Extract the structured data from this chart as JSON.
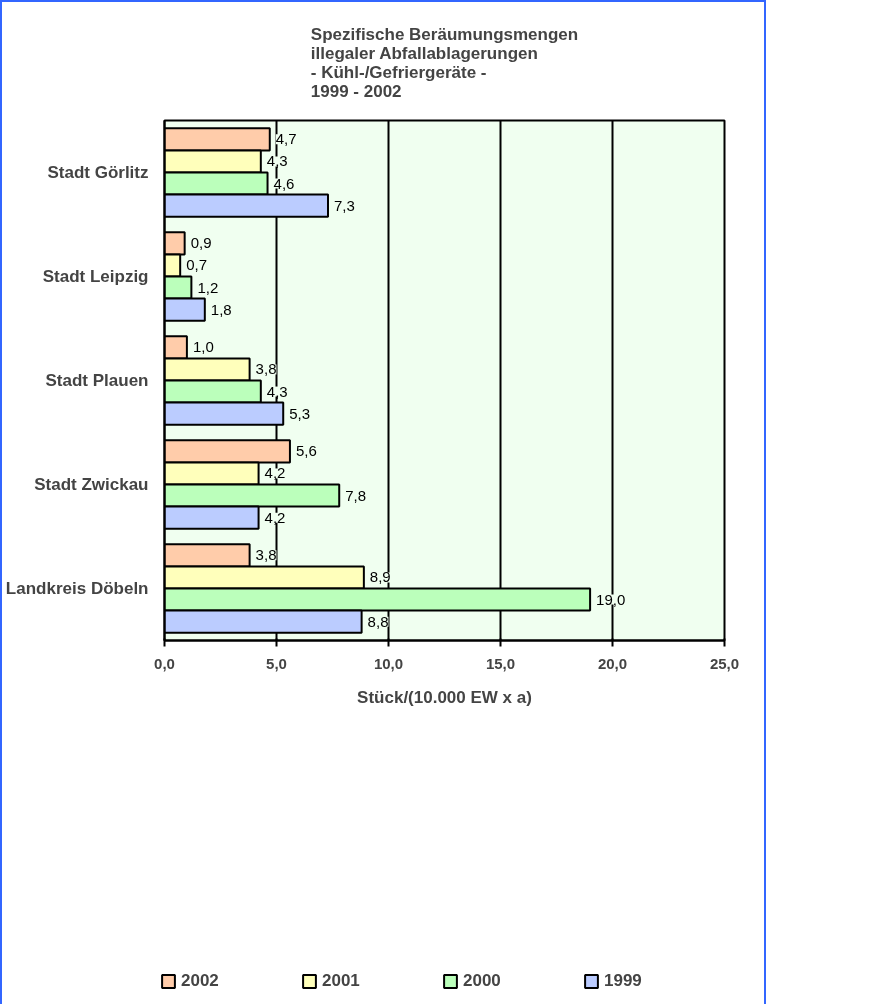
{
  "chart_data": {
    "type": "bar",
    "orientation": "horizontal",
    "title": "Spezifische Beräumungsmengen\nillegaler Abfallablagerungen\n- Kühl-/Gefriergeräte -\n1999 - 2002",
    "xlabel": "Stück/(10.000 EW x a)",
    "categories": [
      "Stadt Görlitz",
      "Stadt Leipzig",
      "Stadt Plauen",
      "Stadt Zwickau",
      "Landkreis Döbeln"
    ],
    "series": [
      {
        "name": "2002",
        "color": "#ffccaa",
        "values": [
          4.7,
          0.9,
          1.0,
          5.6,
          3.8
        ],
        "value_labels": [
          "4,7",
          "0,9",
          "1,0",
          "5,6",
          "3,8"
        ]
      },
      {
        "name": "2001",
        "color": "#ffffbb",
        "values": [
          4.3,
          0.7,
          3.8,
          4.2,
          8.9
        ],
        "value_labels": [
          "4,3",
          "0,7",
          "3,8",
          "4,2",
          "8,9"
        ]
      },
      {
        "name": "2000",
        "color": "#bbffbb",
        "values": [
          4.6,
          1.2,
          4.3,
          7.8,
          19.0
        ],
        "value_labels": [
          "4,6",
          "1,2",
          "4,3",
          "7,8",
          "19,0"
        ]
      },
      {
        "name": "1999",
        "color": "#bbccff",
        "values": [
          7.3,
          1.8,
          5.3,
          4.2,
          8.8
        ],
        "value_labels": [
          "7,3",
          "1,8",
          "5,3",
          "4,2",
          "8,8"
        ]
      }
    ],
    "xlim": [
      0,
      25
    ],
    "xticks": [
      {
        "value": 0,
        "label": "0,0"
      },
      {
        "value": 5,
        "label": "5,0"
      },
      {
        "value": 10,
        "label": "10,0"
      },
      {
        "value": 15,
        "label": "15,0"
      },
      {
        "value": 20,
        "label": "20,0"
      },
      {
        "value": 25,
        "label": "25,0"
      }
    ],
    "grid": "x",
    "legend": "bottom"
  }
}
